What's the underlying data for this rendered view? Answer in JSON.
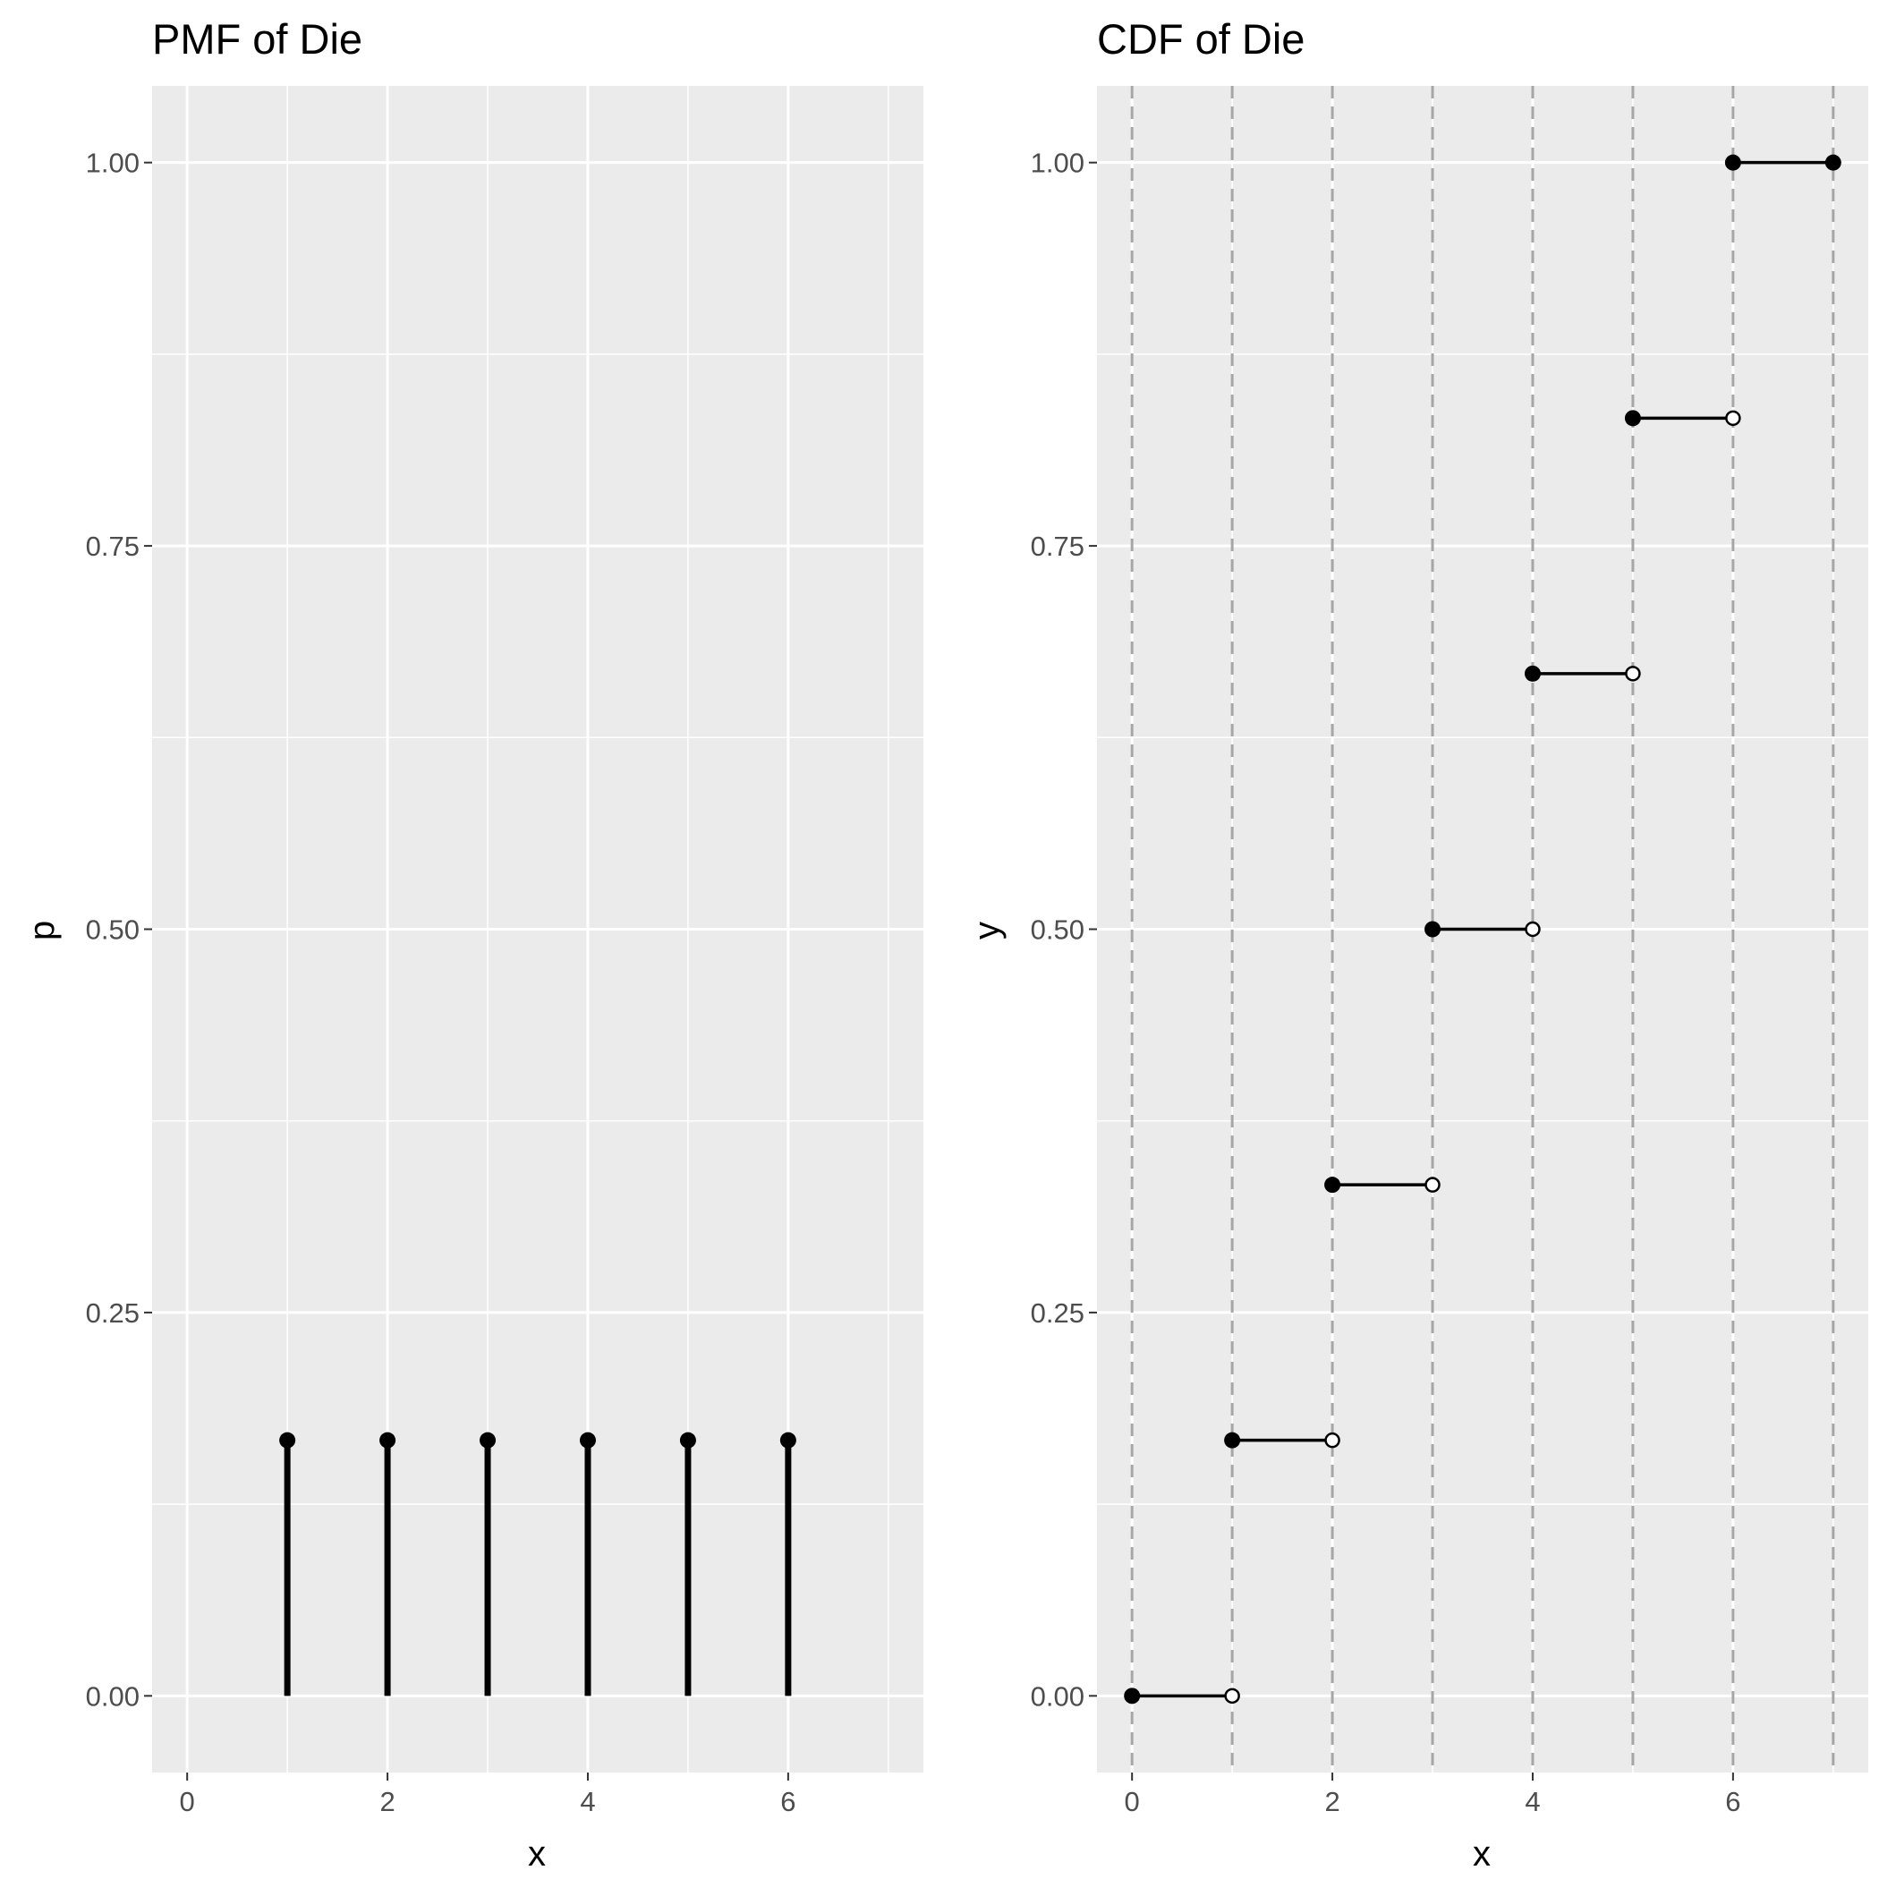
{
  "chart_data": [
    {
      "type": "lollipop",
      "title": "PMF of Die",
      "xlabel": "x",
      "ylabel": "p",
      "xlim": [
        -0.35,
        7.35
      ],
      "ylim": [
        -0.05,
        1.05
      ],
      "x_ticks": [
        0,
        2,
        4,
        6
      ],
      "y_ticks": [
        0.0,
        0.25,
        0.5,
        0.75,
        1.0
      ],
      "x_tick_labels": [
        "0",
        "2",
        "4",
        "6"
      ],
      "y_tick_labels": [
        "0.00",
        "0.25",
        "0.50",
        "0.75",
        "1.00"
      ],
      "grid": true,
      "series": [
        {
          "x": [
            1,
            2,
            3,
            4,
            5,
            6
          ],
          "y": [
            0.1667,
            0.1667,
            0.1667,
            0.1667,
            0.1667,
            0.1667
          ]
        }
      ]
    },
    {
      "type": "step",
      "title": "CDF of Die",
      "xlabel": "x",
      "ylabel": "y",
      "xlim": [
        -0.35,
        7.35
      ],
      "ylim": [
        -0.05,
        1.05
      ],
      "x_ticks": [
        0,
        2,
        4,
        6
      ],
      "y_ticks": [
        0.0,
        0.25,
        0.5,
        0.75,
        1.0
      ],
      "x_tick_labels": [
        "0",
        "2",
        "4",
        "6"
      ],
      "y_tick_labels": [
        "0.00",
        "0.25",
        "0.50",
        "0.75",
        "1.00"
      ],
      "grid": true,
      "vlines": [
        0,
        1,
        2,
        3,
        4,
        5,
        6,
        7
      ],
      "segments": [
        {
          "x0": 0,
          "x1": 1,
          "y": 0.0,
          "end_closed": false
        },
        {
          "x0": 1,
          "x1": 2,
          "y": 0.1667,
          "end_closed": false
        },
        {
          "x0": 2,
          "x1": 3,
          "y": 0.3333,
          "end_closed": false
        },
        {
          "x0": 3,
          "x1": 4,
          "y": 0.5,
          "end_closed": false
        },
        {
          "x0": 4,
          "x1": 5,
          "y": 0.6667,
          "end_closed": false
        },
        {
          "x0": 5,
          "x1": 6,
          "y": 0.8333,
          "end_closed": false
        },
        {
          "x0": 6,
          "x1": 7,
          "y": 1.0,
          "end_closed": true
        }
      ]
    }
  ]
}
